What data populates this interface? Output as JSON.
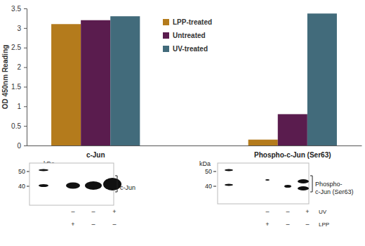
{
  "chart_data": {
    "type": "bar",
    "y_label": "OD 450nm Reading",
    "categories": [
      "c-Jun",
      "Phospho-c-Jun (Ser63)"
    ],
    "series": [
      {
        "name": "LPP-treated",
        "color": "#b47b1c",
        "values": [
          3.1,
          0.15
        ]
      },
      {
        "name": "Untreated",
        "color": "#5a1c4e",
        "values": [
          3.2,
          0.8
        ]
      },
      {
        "name": "UV-treated",
        "color": "#426b7b",
        "values": [
          3.3,
          3.37
        ]
      }
    ],
    "ylim": [
      0,
      3.5
    ],
    "yticks": [
      0,
      0.5,
      1,
      1.5,
      2,
      2.5,
      3,
      3.5
    ],
    "grid": false,
    "legend": "top"
  },
  "blots": [
    {
      "kda": "kDa",
      "markers": [
        50,
        40
      ],
      "band_label": [
        "c-Jun"
      ],
      "rows": [
        {
          "signs": [
            "–",
            "–",
            "+"
          ]
        },
        {
          "signs": [
            "+",
            "–",
            "–"
          ]
        }
      ]
    },
    {
      "kda": "kDa",
      "markers": [
        50,
        40
      ],
      "band_label": [
        "Phospho-",
        "c-Jun (Ser63)"
      ],
      "rows": [
        {
          "signs": [
            "–",
            "–",
            "+"
          ],
          "label": "UV"
        },
        {
          "signs": [
            "+",
            "–",
            "–"
          ],
          "label": "LPP"
        }
      ]
    }
  ]
}
